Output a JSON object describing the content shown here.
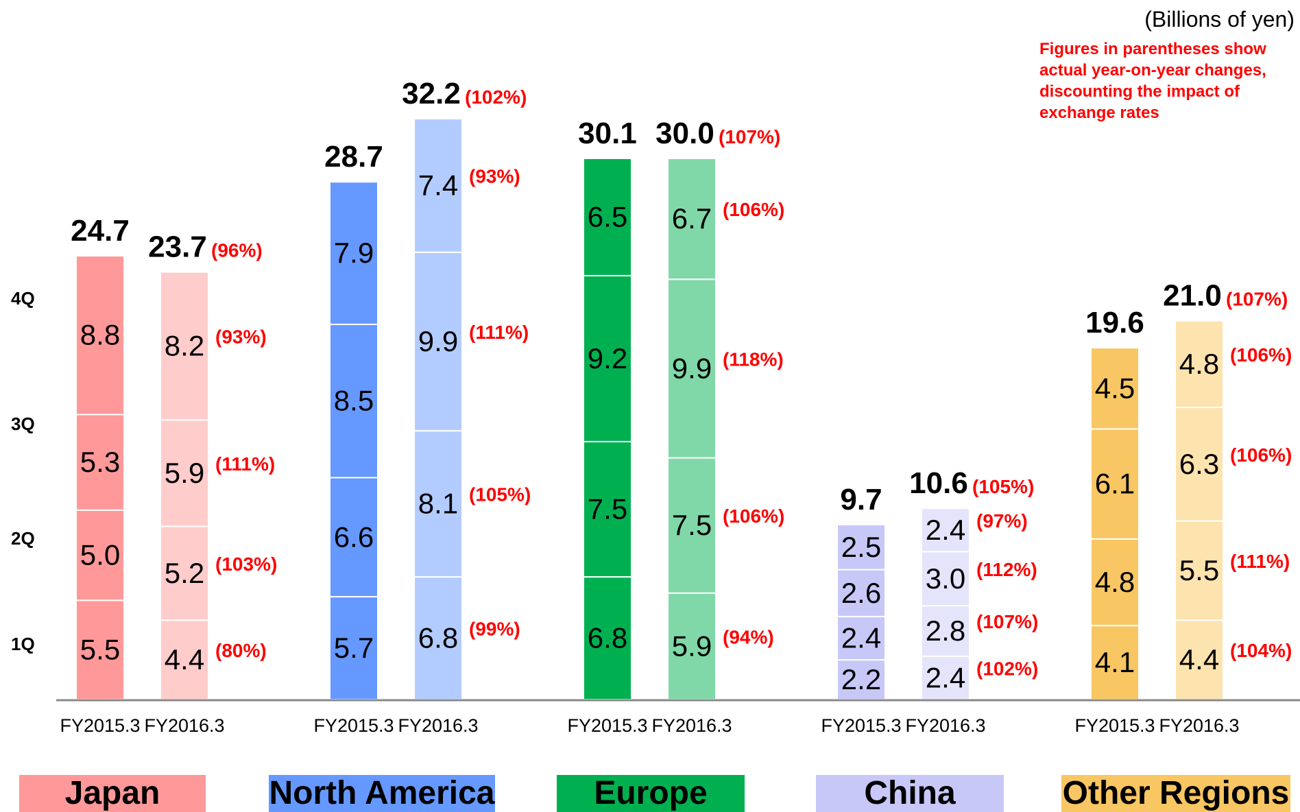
{
  "unit_label": "(Billions of yen)",
  "note": "Figures in parentheses show actual year-on-year changes, discounting the impact of exchange rates",
  "quarter_labels": [
    "1Q",
    "2Q",
    "3Q",
    "4Q"
  ],
  "colors": {
    "japan": [
      "#ff9999",
      "#ffcccc"
    ],
    "north_america": [
      "#6699ff",
      "#b3ccff"
    ],
    "europe": [
      "#00b050",
      "#80d8a8"
    ],
    "china": [
      "#c8c8f8",
      "#e4e4fb"
    ],
    "other_regions": [
      "#f8c663",
      "#fde3ae"
    ],
    "change_text": "#ff0000"
  },
  "chart_data": {
    "type": "bar",
    "stacked": true,
    "stack_order": [
      "1Q",
      "2Q",
      "3Q",
      "4Q"
    ],
    "categories": [
      "FY2015.3",
      "FY2016.3"
    ],
    "unit": "Billions of yen",
    "groups": [
      {
        "region": "Japan",
        "key": "japan",
        "bars": [
          {
            "period": "FY2015.3",
            "total": "24.7",
            "quarters": [
              5.5,
              5.0,
              5.3,
              8.8
            ]
          },
          {
            "period": "FY2016.3",
            "total": "23.7",
            "total_change": "(96%)",
            "quarters": [
              4.4,
              5.2,
              5.9,
              8.2
            ],
            "changes": [
              "(80%)",
              "(103%)",
              "(111%)",
              "(93%)"
            ]
          }
        ]
      },
      {
        "region": "North America",
        "key": "north_america",
        "bars": [
          {
            "period": "FY2015.3",
            "total": "28.7",
            "quarters": [
              5.7,
              6.6,
              8.5,
              7.9
            ]
          },
          {
            "period": "FY2016.3",
            "total": "32.2",
            "total_change": "(102%)",
            "quarters": [
              6.8,
              8.1,
              9.9,
              7.4
            ],
            "changes": [
              "(99%)",
              "(105%)",
              "(111%)",
              "(93%)"
            ]
          }
        ]
      },
      {
        "region": "Europe",
        "key": "europe",
        "bars": [
          {
            "period": "FY2015.3",
            "total": "30.1",
            "quarters": [
              6.8,
              7.5,
              9.2,
              6.5
            ]
          },
          {
            "period": "FY2016.3",
            "total": "30.0",
            "total_change": "(107%)",
            "quarters": [
              5.9,
              7.5,
              9.9,
              6.7
            ],
            "changes": [
              "(94%)",
              "(106%)",
              "(118%)",
              "(106%)"
            ]
          }
        ]
      },
      {
        "region": "China",
        "key": "china",
        "bars": [
          {
            "period": "FY2015.3",
            "total": "9.7",
            "quarters": [
              2.2,
              2.4,
              2.6,
              2.5
            ]
          },
          {
            "period": "FY2016.3",
            "total": "10.6",
            "total_change": "(105%)",
            "quarters": [
              2.4,
              2.8,
              3.0,
              2.4
            ],
            "changes": [
              "(102%)",
              "(107%)",
              "(112%)",
              "(97%)"
            ]
          }
        ]
      },
      {
        "region": "Other Regions",
        "key": "other_regions",
        "bars": [
          {
            "period": "FY2015.3",
            "total": "19.6",
            "quarters": [
              4.1,
              4.8,
              6.1,
              4.5
            ]
          },
          {
            "period": "FY2016.3",
            "total": "21.0",
            "total_change": "(107%)",
            "quarters": [
              4.4,
              5.5,
              6.3,
              4.8
            ],
            "changes": [
              "(104%)",
              "(111%)",
              "(106%)",
              "(106%)"
            ]
          }
        ]
      }
    ],
    "legend": "bottom"
  }
}
